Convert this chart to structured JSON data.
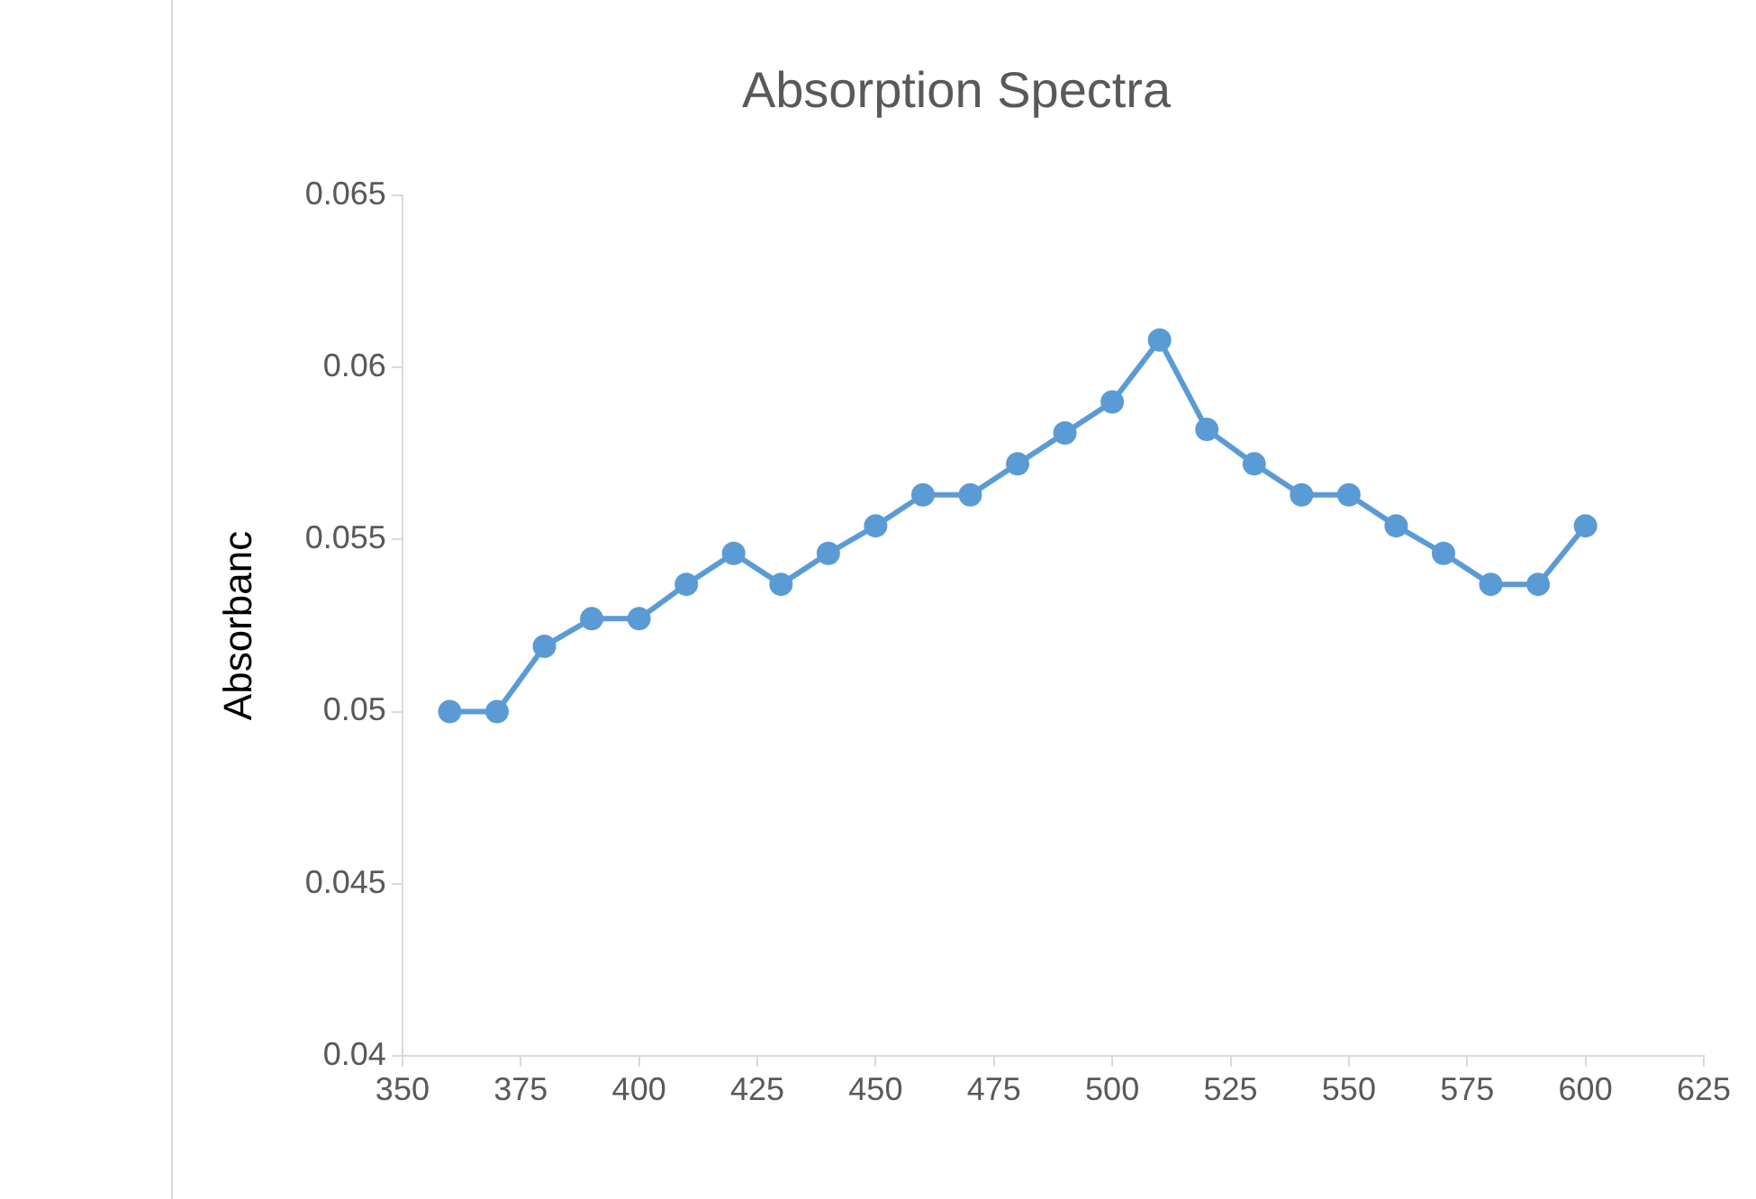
{
  "chart_data": {
    "type": "line",
    "title": "Absorption Spectra",
    "ylabel": "Absorbanc",
    "x": [
      360,
      370,
      380,
      390,
      400,
      410,
      420,
      430,
      440,
      450,
      460,
      470,
      480,
      490,
      500,
      510,
      520,
      530,
      540,
      550,
      560,
      570,
      580,
      590,
      600
    ],
    "series": [
      {
        "color": "#5b9bd5",
        "values": [
          0.05,
          0.05,
          0.0519,
          0.0527,
          0.0527,
          0.0537,
          0.0546,
          0.0537,
          0.0546,
          0.0554,
          0.0563,
          0.0563,
          0.0572,
          0.0581,
          0.059,
          0.0608,
          0.0582,
          0.0572,
          0.0563,
          0.0563,
          0.0554,
          0.0546,
          0.0537,
          0.0537,
          0.0554
        ]
      }
    ],
    "xlim": [
      350,
      625
    ],
    "xticks": [
      350,
      375,
      400,
      425,
      450,
      475,
      500,
      525,
      550,
      575,
      600,
      625
    ],
    "ylim": [
      0.04,
      0.065
    ],
    "yticks": [
      0.04,
      0.045,
      0.05,
      0.055,
      0.06,
      0.065
    ],
    "grid": false,
    "legend": false,
    "marker": "circle",
    "line_style": "solid"
  }
}
